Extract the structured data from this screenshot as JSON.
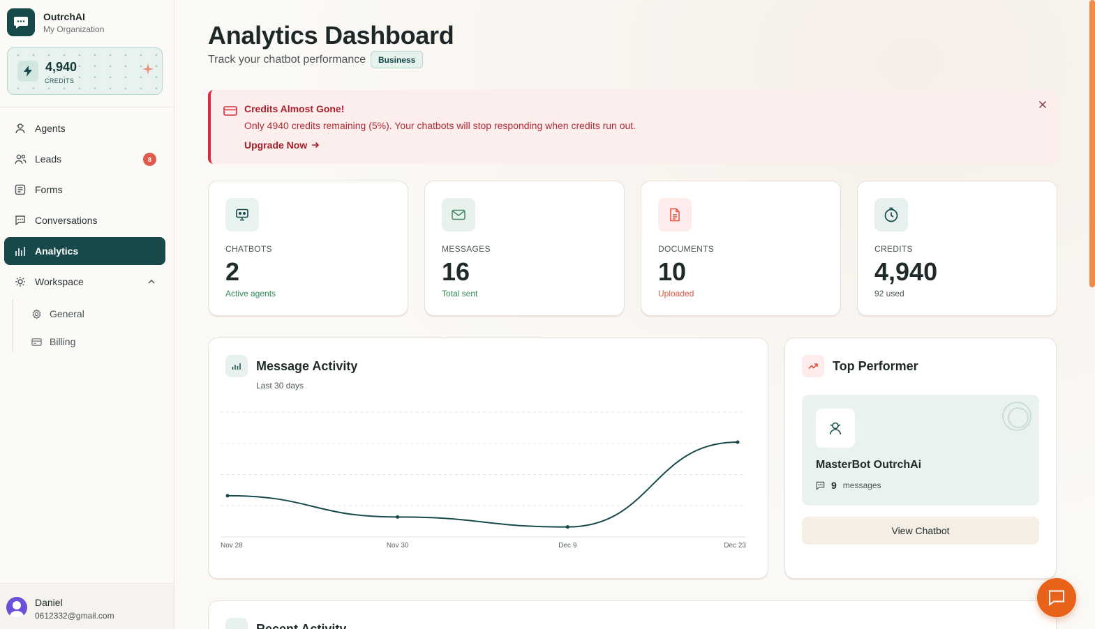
{
  "org": {
    "name": "OutrchAI",
    "subtitle": "My Organization"
  },
  "credits_widget": {
    "value": "4,940",
    "label": "CREDITS"
  },
  "nav": {
    "items": [
      {
        "label": "Agents",
        "icon": "agents-icon"
      },
      {
        "label": "Leads",
        "icon": "leads-icon",
        "badge": "8"
      },
      {
        "label": "Forms",
        "icon": "forms-icon"
      },
      {
        "label": "Conversations",
        "icon": "conversations-icon"
      },
      {
        "label": "Analytics",
        "icon": "analytics-icon",
        "active": true
      },
      {
        "label": "Workspace",
        "icon": "workspace-icon"
      }
    ],
    "sub_items": [
      {
        "label": "General",
        "icon": "gear-icon"
      },
      {
        "label": "Billing",
        "icon": "card-icon"
      }
    ]
  },
  "user": {
    "name": "Daniel",
    "email": "0612332@gmail.com"
  },
  "header": {
    "title": "Analytics Dashboard",
    "subtitle": "Track your chatbot performance",
    "plan": "Business"
  },
  "alert": {
    "title": "Credits Almost Gone!",
    "text": "Only 4940 credits remaining (5%). Your chatbots will stop responding when credits run out.",
    "link": "Upgrade Now"
  },
  "stats": [
    {
      "label": "CHATBOTS",
      "value": "2",
      "sub": "Active agents",
      "sub_color": "#2f8a55",
      "icon": "chatbot-icon",
      "icon_bg": "#e8f3f0"
    },
    {
      "label": "MESSAGES",
      "value": "16",
      "sub": "Total sent",
      "sub_color": "#2f8a55",
      "icon": "mail-icon",
      "icon_bg": "#e9f1ec"
    },
    {
      "label": "DOCUMENTS",
      "value": "10",
      "sub": "Uploaded",
      "sub_color": "#e0513f",
      "icon": "document-icon",
      "icon_bg": "#fdeceb"
    },
    {
      "label": "CREDITS",
      "value": "4,940",
      "sub": "92 used",
      "sub_color": "#4a5454",
      "icon": "clock-icon",
      "icon_bg": "#e8f0ef"
    }
  ],
  "activity": {
    "title": "Message Activity",
    "subtitle": "Last 30 days"
  },
  "chart_data": {
    "type": "line",
    "title": "Message Activity",
    "subtitle": "Last 30 days",
    "x": [
      "Nov 28",
      "Nov 30",
      "Dec 9",
      "Dec 23"
    ],
    "values": [
      3.3,
      1.6,
      0.8,
      7.6
    ],
    "ylim": [
      0,
      10
    ],
    "grid": true,
    "color": "#17494a"
  },
  "top_performer": {
    "title": "Top Performer",
    "name": "MasterBot OutrchAi",
    "count": "9",
    "count_label": "messages",
    "button": "View Chatbot"
  },
  "recent": {
    "title": "Recent Activity"
  }
}
